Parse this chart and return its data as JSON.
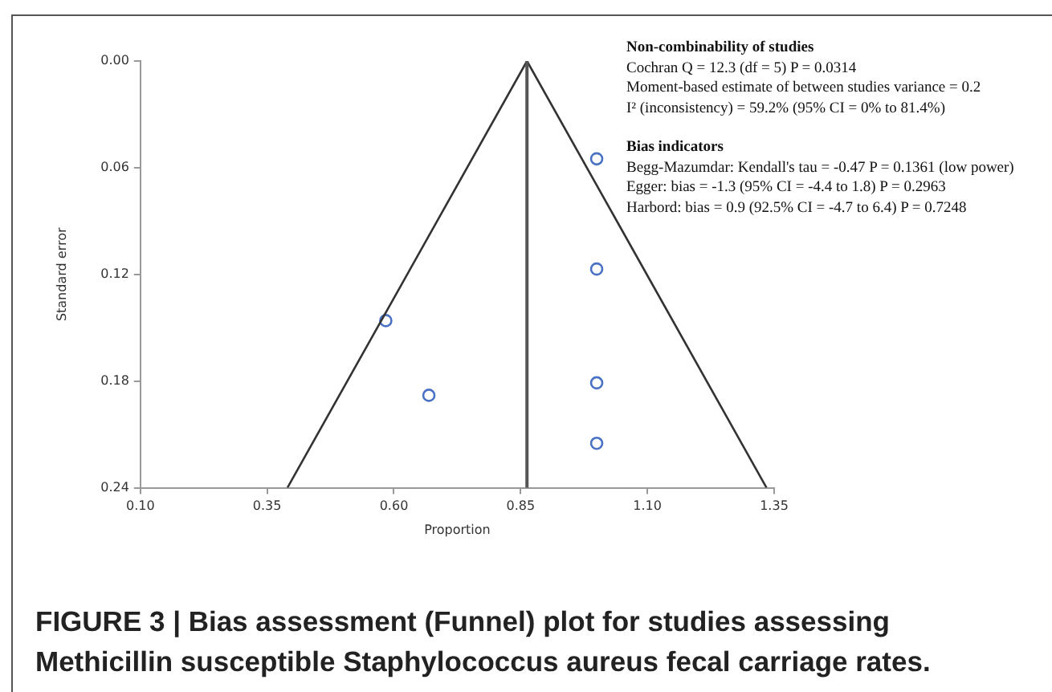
{
  "chart_data": {
    "type": "scatter",
    "title": "FIGURE 3 | Bias assessment (Funnel) plot for studies assessing Methicillin susceptible Staphylococcus aureus fecal carriage rates.",
    "xlabel": "Proportion",
    "ylabel": "Standard error",
    "series": [
      {
        "color": "#4a72c4",
        "marker": "circle",
        "x": [
          0.584,
          0.669,
          1.0,
          1.0,
          1.0,
          1.0
        ],
        "values": [
          0.146,
          0.188,
          0.055,
          0.117,
          0.181,
          0.215
        ]
      },
      {
        "type": "line",
        "color": "#333333",
        "marker": "none",
        "line_style": "solid",
        "x": [
          0.39,
          0.8625,
          1.335
        ],
        "values": [
          0.24,
          0,
          0.24
        ]
      }
    ],
    "ref_lines": [
      {
        "axis": "x",
        "value": 0.8625,
        "color": "#555555"
      }
    ],
    "xlim": [
      0.1,
      1.35
    ],
    "ylim": [
      0.24,
      0
    ],
    "xticks": [
      {
        "value": 0.1,
        "label": "0.10"
      },
      {
        "value": 0.35,
        "label": "0.35"
      },
      {
        "value": 0.6,
        "label": "0.60"
      },
      {
        "value": 0.85,
        "label": "0.85"
      },
      {
        "value": 1.1,
        "label": "1.10"
      },
      {
        "value": 1.35,
        "label": "1.35"
      }
    ],
    "yticks": [
      {
        "value": 0,
        "label": "0.00"
      },
      {
        "value": 0.06,
        "label": "0.06"
      },
      {
        "value": 0.12,
        "label": "0.12"
      },
      {
        "value": 0.18,
        "label": "0.18"
      },
      {
        "value": 0.24,
        "label": "0.24"
      }
    ],
    "grid": false,
    "annotations": [
      "Non-combinability of studies\nCochran Q = 12.3  (df = 5)  P = 0.0314\nMoment-based estimate of between studies variance = 0.2\nI² (inconsistency) = 59.2% (95% CI = 0% to 81.4%)",
      "Bias indicators\nBegg-Mazumdar: Kendall's tau = -0.47  P = 0.1361 (low power)\nEgger: bias = -1.3 (95% CI = -4.4 to 1.8)  P = 0.2963\nHarbord: bias = 0.9 (92.5% CI = -4.7 to 6.4)  P = 0.7248"
    ]
  }
}
